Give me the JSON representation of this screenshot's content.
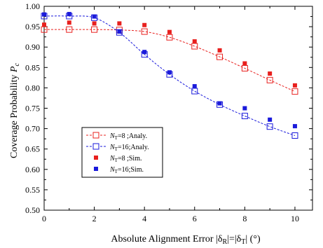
{
  "chart_data": {
    "type": "line",
    "title": "",
    "xlabel": "Absolute Alignment Error |δR|=|δT|  (°)",
    "ylabel": "Coverage Probability Pc",
    "xlabel_parts": {
      "pre": "Absolute Alignment Error |δ",
      "sub1": "R",
      "mid": "|=|δ",
      "sub2": "T",
      "post": "|  (°)"
    },
    "ylabel_parts": {
      "main": "Coverage Probability ",
      "var": "P",
      "sub": "c"
    },
    "xlim": [
      0,
      10.7
    ],
    "ylim": [
      0.5,
      1.0
    ],
    "xticks": [
      0,
      2,
      4,
      6,
      8,
      10
    ],
    "yticks": [
      0.5,
      0.55,
      0.6,
      0.65,
      0.7,
      0.75,
      0.8,
      0.85,
      0.9,
      0.95,
      1.0
    ],
    "ytick_labels": [
      "0.50",
      "0.55",
      "0.60",
      "0.65",
      "0.70",
      "0.75",
      "0.80",
      "0.85",
      "0.90",
      "0.95",
      "1.00"
    ],
    "grid": false,
    "legend_position": "center-left",
    "x": [
      0,
      1,
      2,
      3,
      4,
      5,
      6,
      7,
      8,
      9,
      10
    ],
    "series": [
      {
        "name": "NT=8 ;Analy.",
        "legend": {
          "var": "N",
          "sub": "T",
          "text": "=8 ;Analy."
        },
        "kind": "analytical",
        "color": "#e8201e",
        "values": [
          0.943,
          0.943,
          0.943,
          0.942,
          0.938,
          0.924,
          0.902,
          0.876,
          0.848,
          0.819,
          0.791
        ]
      },
      {
        "name": "NT=16;Analy.",
        "legend": {
          "var": "N",
          "sub": "T",
          "text": "=16;Analy."
        },
        "kind": "analytical",
        "color": "#1a1adb",
        "values": [
          0.976,
          0.976,
          0.972,
          0.936,
          0.882,
          0.833,
          0.792,
          0.759,
          0.731,
          0.705,
          0.683
        ]
      },
      {
        "name": "NT=8 ;Sim.",
        "legend": {
          "var": "N",
          "sub": "T",
          "text": "=8 ;Sim."
        },
        "kind": "simulation",
        "color": "#e8201e",
        "values": [
          0.955,
          0.96,
          0.958,
          0.958,
          0.954,
          0.937,
          0.914,
          0.892,
          0.86,
          0.835,
          0.806
        ]
      },
      {
        "name": "NT=16;Sim.",
        "legend": {
          "var": "N",
          "sub": "T",
          "text": "=16;Sim."
        },
        "kind": "simulation",
        "color": "#1a1adb",
        "values": [
          0.98,
          0.981,
          0.975,
          0.938,
          0.888,
          0.838,
          0.804,
          0.762,
          0.75,
          0.722,
          0.706
        ]
      }
    ]
  }
}
